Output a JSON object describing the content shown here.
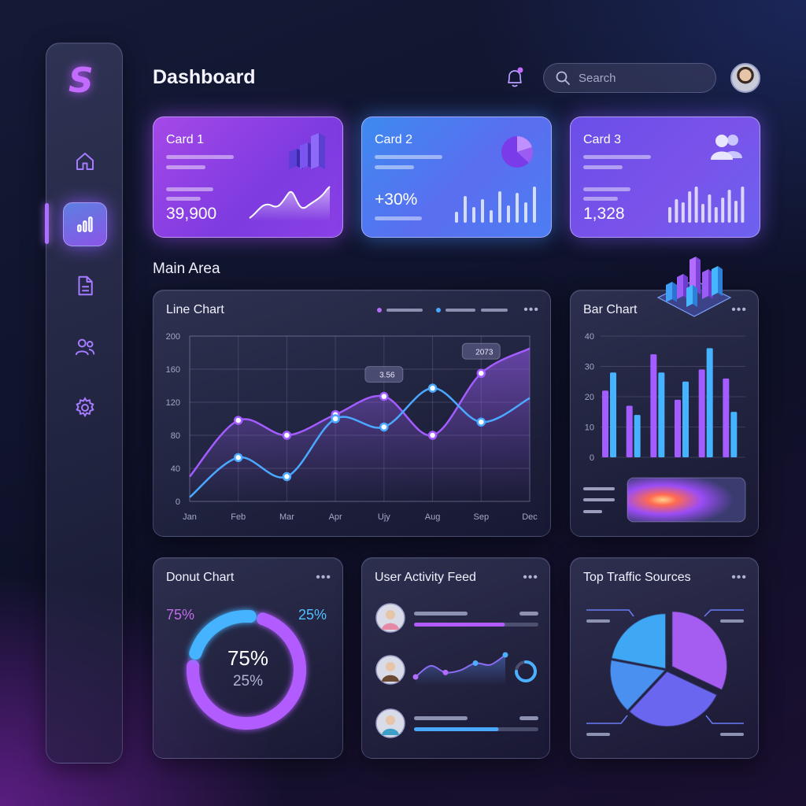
{
  "header": {
    "title": "Dashboard",
    "search_placeholder": "Search"
  },
  "sidebar": {
    "logo": "S",
    "items": [
      "home-icon",
      "bar-chart-icon",
      "document-icon",
      "users-icon",
      "gear-icon"
    ],
    "active": 1
  },
  "cards": [
    {
      "title": "Card 1",
      "value": "39,900",
      "icon": "3d-bar-icon",
      "color": "#a548e8"
    },
    {
      "title": "Card 2",
      "value": "+30%",
      "icon": "pie-icon",
      "color": "#3e8af0"
    },
    {
      "title": "Card 3",
      "value": "1,328",
      "icon": "users-icon",
      "color": "#6a4fe8"
    }
  ],
  "main_area": {
    "title": "Main Area"
  },
  "panels": {
    "line_chart": "Line Chart",
    "bar_chart": "Bar Chart",
    "donut_chart": "Donut Chart",
    "activity_feed": "User Activity Feed",
    "traffic_sources": "Top Traffic Sources",
    "menu": "•••"
  },
  "chart_data": [
    {
      "type": "line",
      "title": "Line Chart",
      "x": [
        "Jan",
        "Feb",
        "Mar",
        "Apr",
        "Ujy",
        "Aug",
        "Sep",
        "Dec"
      ],
      "yticks": [
        0,
        40,
        80,
        120,
        160,
        200
      ],
      "ylim": [
        0,
        200
      ],
      "series": [
        {
          "color": "#a35cff",
          "values": [
            30,
            98,
            80,
            105,
            127,
            80,
            155,
            185
          ]
        },
        {
          "color": "#4aa8ff",
          "values": [
            5,
            53,
            30,
            100,
            90,
            137,
            96,
            125
          ]
        }
      ],
      "annotations": [
        {
          "label": "3.56",
          "x": "Ujy"
        },
        {
          "label": "2073",
          "x": "Sep"
        }
      ],
      "grid": true
    },
    {
      "type": "bar",
      "title": "Bar Chart",
      "yticks": [
        0,
        10,
        20,
        30,
        40
      ],
      "ylim": [
        0,
        40
      ],
      "series": [
        {
          "color": "#a35cff",
          "values": [
            22,
            17,
            34,
            19,
            29,
            26
          ]
        },
        {
          "color": "#45b3ff",
          "values": [
            28,
            14,
            28,
            25,
            36,
            15
          ]
        }
      ]
    },
    {
      "type": "pie",
      "title": "Donut Chart",
      "labels": [
        "75%",
        "25%"
      ],
      "values": [
        75,
        25
      ],
      "center_labels": [
        "75%",
        "25%"
      ],
      "colors": [
        "#b25cff",
        "#45b3ff"
      ]
    },
    {
      "type": "pie",
      "title": "Top Traffic Sources",
      "values": [
        32,
        30,
        16,
        22
      ],
      "colors": [
        "#a55cf0",
        "#6a66f0",
        "#4a90f0",
        "#3ea8f5"
      ]
    }
  ],
  "feed": {
    "progress": [
      0.73,
      0.68
    ],
    "sparkline": [
      10,
      30,
      18,
      22,
      35,
      32,
      50
    ]
  }
}
